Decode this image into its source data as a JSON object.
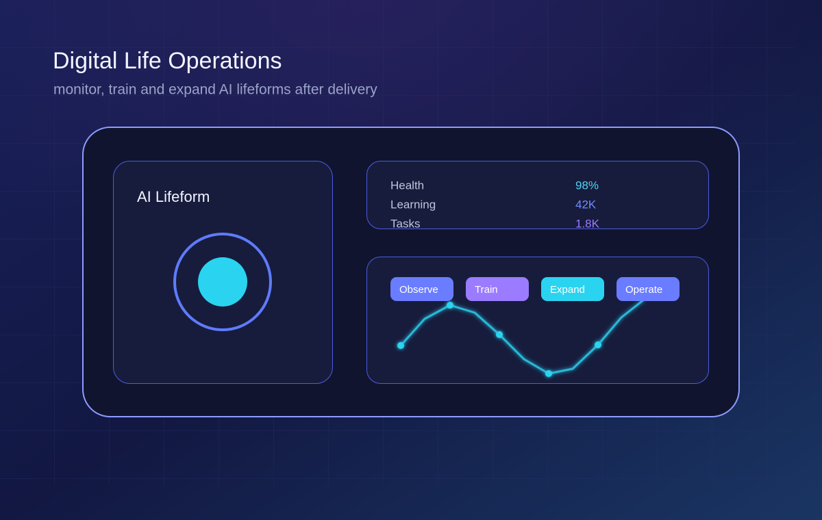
{
  "header": {
    "title": "Digital Life Operations",
    "subtitle": "monitor, train and expand AI lifeforms after delivery"
  },
  "lifeform_panel": {
    "title": "AI Lifeform"
  },
  "metrics": [
    {
      "label": "Health",
      "value": "98%"
    },
    {
      "label": "Learning",
      "value": "42K"
    },
    {
      "label": "Tasks",
      "value": "1.8K"
    }
  ],
  "actions": [
    "Observe",
    "Train",
    "Expand",
    "Operate"
  ]
}
